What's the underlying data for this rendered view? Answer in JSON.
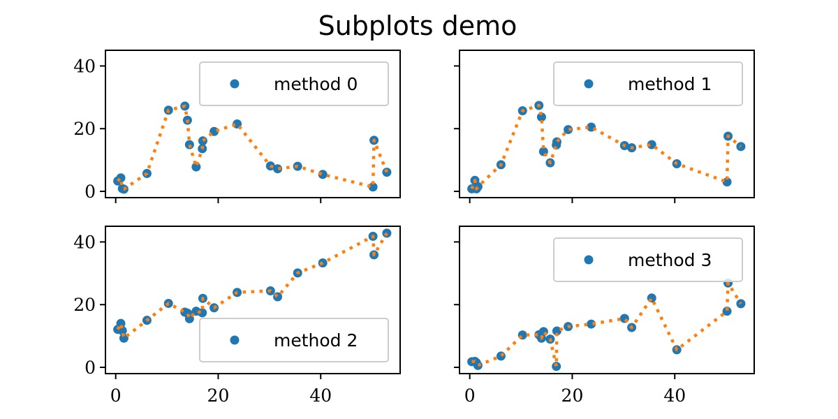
{
  "title": "Subplots demo",
  "colors": {
    "marker": "#1f77b4",
    "line": "#ff7f0e",
    "axis": "#000000",
    "legend_edge": "#cccccc"
  },
  "chart_data": [
    {
      "type": "scatter",
      "panel": "top-left",
      "title": "",
      "xlabel": "",
      "ylabel": "",
      "xlim": [
        -2,
        55.5
      ],
      "ylim": [
        -2,
        45
      ],
      "xticks": [
        0,
        20,
        40
      ],
      "yticks": [
        0,
        20,
        40
      ],
      "x_tick_labels_shown": false,
      "y_tick_labels_shown": true,
      "legend": "upper right",
      "grid": false,
      "series": [
        {
          "name": "method 0",
          "style": "markers with dotted line",
          "points": [
            [
              0.4,
              3.3
            ],
            [
              1.0,
              4.3
            ],
            [
              1.3,
              0.9
            ],
            [
              1.6,
              0.7
            ],
            [
              6.1,
              5.7
            ],
            [
              10.3,
              25.9
            ],
            [
              13.5,
              27.2
            ],
            [
              14.0,
              22.7
            ],
            [
              14.4,
              14.9
            ],
            [
              15.7,
              7.8
            ],
            [
              16.9,
              13.6
            ],
            [
              17.0,
              16.1
            ],
            [
              19.2,
              19.1
            ],
            [
              23.7,
              21.5
            ],
            [
              30.2,
              8.1
            ],
            [
              31.6,
              7.2
            ],
            [
              35.5,
              8.0
            ],
            [
              40.4,
              5.4
            ],
            [
              50.2,
              1.4
            ],
            [
              50.4,
              16.3
            ],
            [
              52.9,
              6.1
            ]
          ]
        }
      ]
    },
    {
      "type": "scatter",
      "panel": "top-right",
      "title": "",
      "xlabel": "",
      "ylabel": "",
      "xlim": [
        -2,
        55.5
      ],
      "ylim": [
        -2,
        45
      ],
      "xticks": [
        0,
        20,
        40
      ],
      "yticks": [
        0,
        20,
        40
      ],
      "x_tick_labels_shown": false,
      "y_tick_labels_shown": false,
      "legend": "upper right",
      "grid": false,
      "series": [
        {
          "name": "method 1",
          "style": "markers with dotted line",
          "points": [
            [
              0.4,
              0.8
            ],
            [
              1.0,
              3.5
            ],
            [
              1.3,
              0.8
            ],
            [
              1.6,
              1.5
            ],
            [
              6.1,
              8.5
            ],
            [
              10.3,
              25.7
            ],
            [
              13.5,
              27.4
            ],
            [
              14.0,
              23.7
            ],
            [
              14.4,
              12.7
            ],
            [
              15.7,
              9.1
            ],
            [
              16.9,
              14.8
            ],
            [
              17.0,
              15.8
            ],
            [
              19.2,
              19.7
            ],
            [
              23.7,
              20.5
            ],
            [
              30.2,
              14.6
            ],
            [
              31.6,
              13.9
            ],
            [
              35.5,
              14.9
            ],
            [
              40.4,
              8.8
            ],
            [
              50.2,
              3.0
            ],
            [
              50.4,
              17.6
            ],
            [
              52.9,
              14.3
            ]
          ]
        }
      ]
    },
    {
      "type": "scatter",
      "panel": "bottom-left",
      "title": "",
      "xlabel": "",
      "ylabel": "",
      "xlim": [
        -2,
        55.5
      ],
      "ylim": [
        -2,
        45
      ],
      "xticks": [
        0,
        20,
        40
      ],
      "yticks": [
        0,
        20,
        40
      ],
      "x_tick_labels_shown": true,
      "y_tick_labels_shown": true,
      "legend": "lower right",
      "grid": false,
      "series": [
        {
          "name": "method 2",
          "style": "markers with dotted line",
          "points": [
            [
              0.4,
              12.1
            ],
            [
              1.0,
              14.0
            ],
            [
              1.3,
              11.7
            ],
            [
              1.6,
              9.3
            ],
            [
              6.1,
              15.0
            ],
            [
              10.3,
              20.4
            ],
            [
              13.5,
              17.6
            ],
            [
              14.0,
              17.3
            ],
            [
              14.4,
              15.5
            ],
            [
              15.7,
              17.9
            ],
            [
              16.9,
              17.4
            ],
            [
              17.0,
              22.0
            ],
            [
              19.2,
              19.0
            ],
            [
              23.7,
              23.9
            ],
            [
              30.2,
              24.4
            ],
            [
              31.6,
              22.5
            ],
            [
              35.5,
              30.1
            ],
            [
              40.4,
              33.3
            ],
            [
              50.2,
              41.8
            ],
            [
              50.4,
              35.9
            ],
            [
              52.9,
              42.8
            ]
          ]
        }
      ]
    },
    {
      "type": "scatter",
      "panel": "bottom-right",
      "title": "",
      "xlabel": "",
      "ylabel": "",
      "xlim": [
        -2,
        55.5
      ],
      "ylim": [
        -2,
        45
      ],
      "xticks": [
        0,
        20,
        40
      ],
      "yticks": [
        0,
        20,
        40
      ],
      "x_tick_labels_shown": true,
      "y_tick_labels_shown": false,
      "legend": "upper right",
      "grid": false,
      "series": [
        {
          "name": "method 3",
          "style": "markers with dotted line",
          "points": [
            [
              0.4,
              1.8
            ],
            [
              1.0,
              1.9
            ],
            [
              1.3,
              1.5
            ],
            [
              1.6,
              0.6
            ],
            [
              6.1,
              3.6
            ],
            [
              10.3,
              10.3
            ],
            [
              13.5,
              10.4
            ],
            [
              14.0,
              9.3
            ],
            [
              14.4,
              11.4
            ],
            [
              15.7,
              9.0
            ],
            [
              16.9,
              0.3
            ],
            [
              17.0,
              11.6
            ],
            [
              19.2,
              13.0
            ],
            [
              23.7,
              13.8
            ],
            [
              30.2,
              15.6
            ],
            [
              31.6,
              12.7
            ],
            [
              35.5,
              22.1
            ],
            [
              40.4,
              5.6
            ],
            [
              50.2,
              17.9
            ],
            [
              50.4,
              26.9
            ],
            [
              52.9,
              20.3
            ]
          ]
        }
      ]
    }
  ]
}
